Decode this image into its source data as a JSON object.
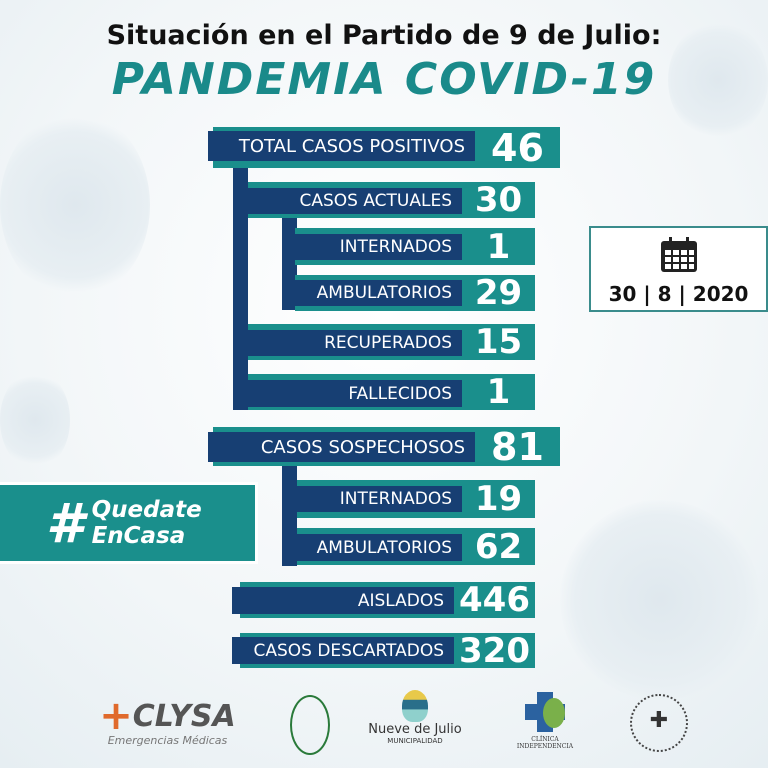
{
  "header": {
    "title": "Situación en el Partido de 9 de Julio:",
    "subtitle": "PANDEMIA COVID-19"
  },
  "stats": {
    "total_positivos": {
      "label": "TOTAL CASOS POSITIVOS",
      "value": "46"
    },
    "casos_actuales": {
      "label": "CASOS ACTUALES",
      "value": "30"
    },
    "internados": {
      "label": "INTERNADOS",
      "value": "1"
    },
    "ambulatorios": {
      "label": "AMBULATORIOS",
      "value": "29"
    },
    "recuperados": {
      "label": "RECUPERADOS",
      "value": "15"
    },
    "fallecidos": {
      "label": "FALLECIDOS",
      "value": "1"
    },
    "sospechosos": {
      "label": "CASOS SOSPECHOSOS",
      "value": "81"
    },
    "sosp_internados": {
      "label": "INTERNADOS",
      "value": "19"
    },
    "sosp_ambulatorios": {
      "label": "AMBULATORIOS",
      "value": "62"
    },
    "aislados": {
      "label": "AISLADOS",
      "value": "446"
    },
    "descartados": {
      "label": "CASOS DESCARTADOS",
      "value": "320"
    }
  },
  "hashtag": {
    "symbol": "#",
    "line1": "Quedate",
    "line2": "EnCasa"
  },
  "date": {
    "icon": "calendar-icon",
    "text": "30 | 8 | 2020"
  },
  "logos": {
    "clysa": "CLYSA",
    "clysa_sub": "Emergencias Médicas",
    "nueve": "Nueve de Julio",
    "nueve_sub": "MUNICIPALIDAD",
    "clinica": "CLÍNICA INDEPENDENCIA"
  },
  "colors": {
    "teal": "#1a8f8c",
    "navy": "#173f73"
  }
}
